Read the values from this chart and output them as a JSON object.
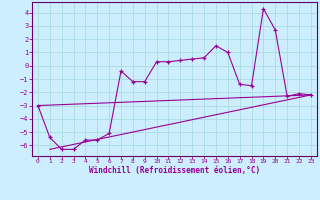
{
  "xlabel": "Windchill (Refroidissement éolien,°C)",
  "bg_color": "#cceeff",
  "grid_color": "#aadddd",
  "line_color": "#990099",
  "spine_color": "#660066",
  "xlim": [
    -0.5,
    23.5
  ],
  "ylim": [
    -6.8,
    4.8
  ],
  "xticks": [
    0,
    1,
    2,
    3,
    4,
    5,
    6,
    7,
    8,
    9,
    10,
    11,
    12,
    13,
    14,
    15,
    16,
    17,
    18,
    19,
    20,
    21,
    22,
    23
  ],
  "yticks": [
    -6,
    -5,
    -4,
    -3,
    -2,
    -1,
    0,
    1,
    2,
    3,
    4
  ],
  "line1_x": [
    0,
    1,
    2,
    3,
    4,
    5,
    6,
    7,
    8,
    9,
    10,
    11,
    12,
    13,
    14,
    15,
    16,
    17,
    18,
    19,
    20,
    21,
    22,
    23
  ],
  "line1_y": [
    -3.0,
    -5.4,
    -6.3,
    -6.3,
    -5.6,
    -5.6,
    -5.1,
    -0.4,
    -1.2,
    -1.2,
    0.3,
    0.3,
    0.4,
    0.5,
    0.6,
    1.5,
    1.0,
    -1.4,
    -1.5,
    4.3,
    2.7,
    -2.3,
    -2.1,
    -2.2
  ],
  "line2_x": [
    0,
    23
  ],
  "line2_y": [
    -3.0,
    -2.2
  ],
  "line3_x": [
    1,
    23
  ],
  "line3_y": [
    -6.3,
    -2.2
  ]
}
